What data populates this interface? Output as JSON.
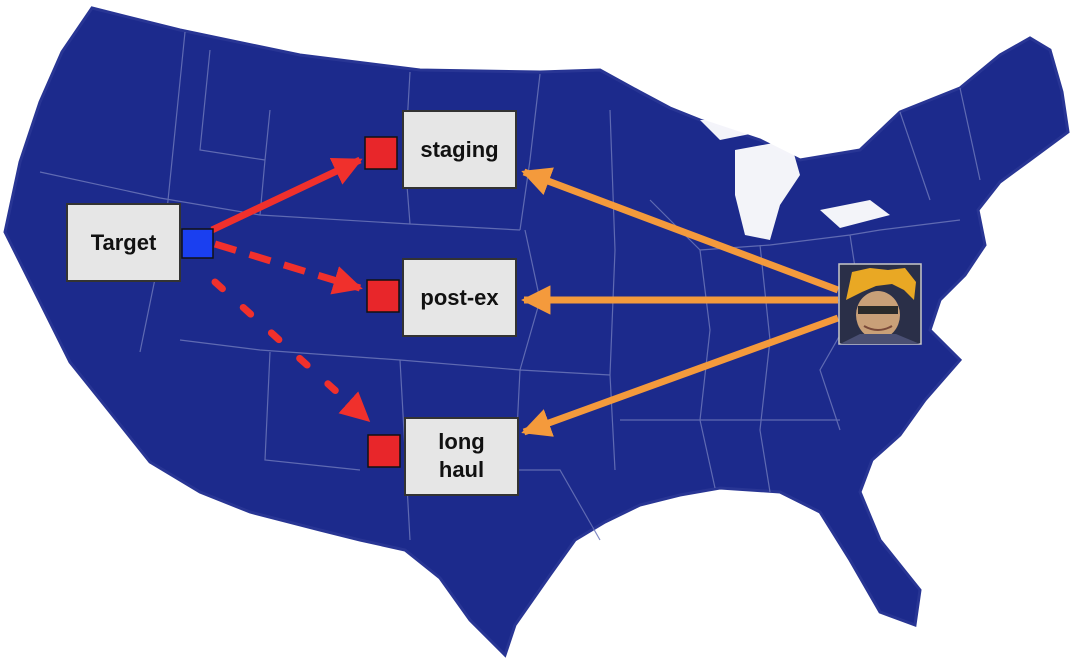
{
  "colors": {
    "map_fill": "#1c2a8c",
    "state_border": "#6b76b8",
    "box_fill": "#e6e6e6",
    "box_border": "#333333",
    "port_red": "#e8262a",
    "port_blue": "#1a3ff0",
    "arrow_red": "#f0302c",
    "arrow_orange": "#f49a3c",
    "avatar_bg": "#2a2f48",
    "avatar_hair": "#e9a824"
  },
  "nodes": {
    "target": {
      "label": "Target"
    },
    "staging": {
      "label": "staging"
    },
    "post_ex": {
      "label": "post-ex"
    },
    "long_haul": {
      "label_line1": "long",
      "label_line2": "haul"
    }
  },
  "edges": [
    {
      "from": "target",
      "to": "staging",
      "style": "solid",
      "color": "red"
    },
    {
      "from": "target",
      "to": "post-ex",
      "style": "dashed",
      "color": "red"
    },
    {
      "from": "target",
      "to": "long haul",
      "style": "dotted",
      "color": "red"
    },
    {
      "from": "operator",
      "to": "staging",
      "style": "solid",
      "color": "orange"
    },
    {
      "from": "operator",
      "to": "post-ex",
      "style": "solid",
      "color": "orange"
    },
    {
      "from": "operator",
      "to": "long haul",
      "style": "solid",
      "color": "orange"
    }
  ],
  "icons": {
    "operator": "operator-avatar-icon"
  }
}
